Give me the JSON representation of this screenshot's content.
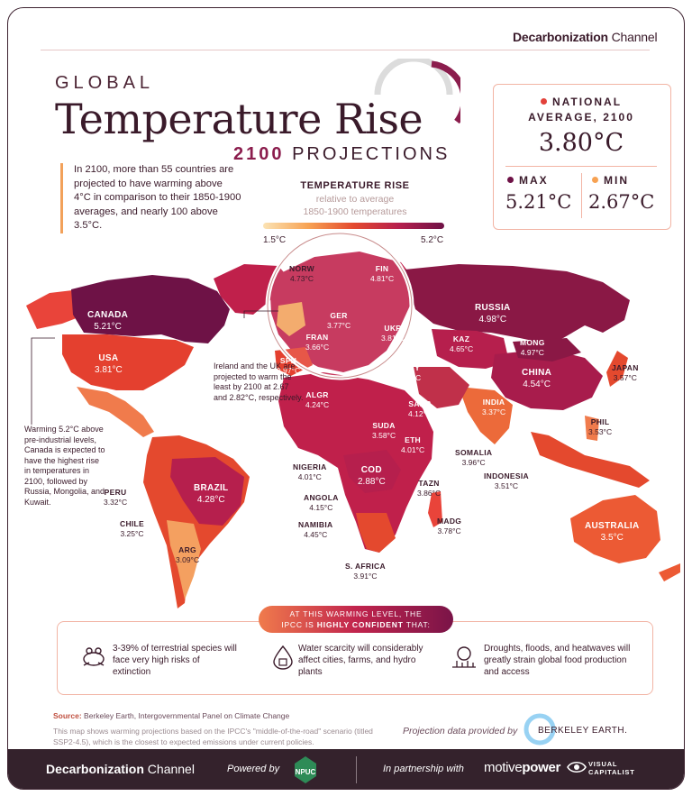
{
  "brand": {
    "name_bold": "Decarbonization",
    "name_regular": "Channel"
  },
  "title": {
    "global": "GLOBAL",
    "main": "Temperature Rise",
    "year": "2100",
    "projections": "PROJECTIONS"
  },
  "intro": "In 2100, more than 55 countries are projected to have warming above 4°C in comparison to their 1850-1900 averages, and nearly 100 above 3.5°C.",
  "legend": {
    "title": "TEMPERATURE RISE",
    "subtitle_1": "relative to average",
    "subtitle_2": "1850-1900 temperatures",
    "min_label": "1.5°C",
    "max_label": "5.2°C"
  },
  "national": {
    "label_1": "NATIONAL",
    "label_2": "AVERAGE, 2100",
    "value": "3.80°C",
    "max_label": "MAX",
    "max_value": "5.21°C",
    "min_label": "MIN",
    "min_value": "2.67°C"
  },
  "colors": {
    "dark": "#6e1246",
    "magenta": "#b61f4d",
    "red": "#e4492e",
    "orange": "#f07b4c",
    "light": "#f7a253",
    "accent_dot": "#e2413a"
  },
  "countries": [
    {
      "code": "CANADA",
      "value": "5.21°C"
    },
    {
      "code": "USA",
      "value": "3.81°C"
    },
    {
      "code": "BRAZIL",
      "value": "4.28°C"
    },
    {
      "code": "PERU",
      "value": "3.32°C"
    },
    {
      "code": "CHILE",
      "value": "3.25°C"
    },
    {
      "code": "ARG",
      "value": "3.09°C"
    },
    {
      "code": "NORW",
      "value": "4.73°C"
    },
    {
      "code": "FIN",
      "value": "4.81°C"
    },
    {
      "code": "GER",
      "value": "3.77°C"
    },
    {
      "code": "FRAN",
      "value": "3.66°C"
    },
    {
      "code": "UKR",
      "value": "3.81°C"
    },
    {
      "code": "SPN",
      "value": "3.97°C"
    },
    {
      "code": "TRKY",
      "value": "3.61°C"
    },
    {
      "code": "ALGR",
      "value": "4.24°C"
    },
    {
      "code": "SARB",
      "value": "4.12°C"
    },
    {
      "code": "SUDA",
      "value": "3.58°C"
    },
    {
      "code": "ETH",
      "value": "4.01°C"
    },
    {
      "code": "SOMALIA",
      "value": "3.96°C"
    },
    {
      "code": "NIGERIA",
      "value": "4.01°C"
    },
    {
      "code": "COD",
      "value": "2.88°C"
    },
    {
      "code": "TAZN",
      "value": "3.86°C"
    },
    {
      "code": "ANGOLA",
      "value": "4.15°C"
    },
    {
      "code": "NAMIBIA",
      "value": "4.45°C"
    },
    {
      "code": "MADG",
      "value": "3.78°C"
    },
    {
      "code": "S. AFRICA",
      "value": "3.91°C"
    },
    {
      "code": "RUSSIA",
      "value": "4.98°C"
    },
    {
      "code": "KAZ",
      "value": "4.65°C"
    },
    {
      "code": "MONG",
      "value": "4.97°C"
    },
    {
      "code": "CHINA",
      "value": "4.54°C"
    },
    {
      "code": "JAPAN",
      "value": "3.57°C"
    },
    {
      "code": "INDIA",
      "value": "3.37°C"
    },
    {
      "code": "PHIL",
      "value": "3.53°C"
    },
    {
      "code": "INDONESIA",
      "value": "3.51°C"
    },
    {
      "code": "AUSTRALIA",
      "value": "3.5°C"
    }
  ],
  "notes": {
    "uk": "Ireland and the UK are projected to warm the least by 2100 at 2.67 and 2.82°C, respectively.",
    "canada": "Warming 5.2°C above pre-industrial levels, Canada is expected to have the highest rise in temperatures in 2100, followed by Russia, Mongolia, and Kuwait."
  },
  "confidence": {
    "header_1": "AT THIS WARMING LEVEL, THE",
    "header_2_pre": "IPCC IS",
    "header_2_bold": "HIGHLY CONFIDENT",
    "header_2_post": "THAT:",
    "items": [
      {
        "icon": "frog-icon",
        "text": "3-39% of terrestrial species will face very high risks of extinction"
      },
      {
        "icon": "water-drop-icon",
        "text": "Water scarcity will considerably affect cities, farms, and hydro plants"
      },
      {
        "icon": "crop-drought-icon",
        "text": "Droughts, floods, and heatwaves will greatly strain global food production and access"
      }
    ]
  },
  "source": {
    "label": "Source:",
    "text": "Berkeley Earth, Intergovernmental Panel on Climate Change",
    "note": "This map shows warming projections based on the IPCC's \"middle-of-the-road\" scenario (titled SSP2-4.5), which is the closest to expected emissions under current policies."
  },
  "projection": {
    "text": "Projection data provided by",
    "provider": "BERKELEY EARTH."
  },
  "footer": {
    "brand_bold": "Decarbonization",
    "brand_regular": "Channel",
    "powered": "Powered by",
    "npuc": "NPUC",
    "partnership": "In partnership with",
    "partner_pre": "motive",
    "partner_bold": "power",
    "vc_1": "VISUAL",
    "vc_2": "CAPITALIST"
  }
}
